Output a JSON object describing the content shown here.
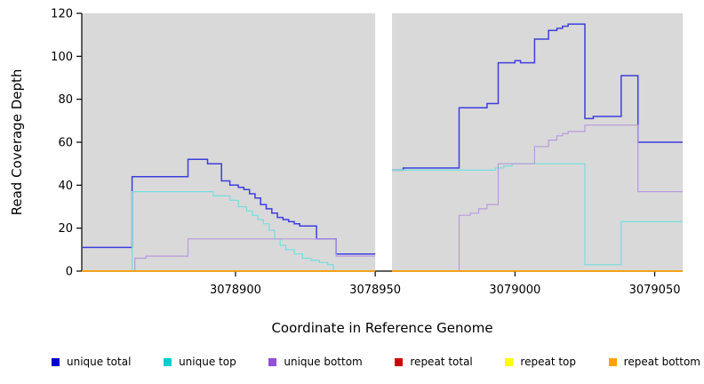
{
  "chart_data": {
    "type": "line",
    "step": true,
    "title": "",
    "xlabel": "Coordinate in Reference Genome",
    "ylabel": "Read Coverage Depth",
    "xlim": [
      3078845,
      3079060
    ],
    "ylim": [
      0,
      120
    ],
    "xticks": [
      3078900,
      3078950,
      3079000,
      3079050
    ],
    "yticks": [
      0,
      20,
      40,
      60,
      80,
      100,
      120
    ],
    "gap": [
      3078950,
      3078956
    ],
    "plot_bg": "#d9d9d9",
    "gap_color": "#ffffff",
    "axis_color": "#000000",
    "legend_position": "bottom",
    "grid": false,
    "series": [
      {
        "name": "unique total",
        "legend_color": "#0000cd",
        "line_color": "#3e3ede",
        "width": 1.5,
        "segments": [
          [
            [
              3078845,
              11
            ],
            [
              3078863,
              44
            ],
            [
              3078883,
              52
            ],
            [
              3078890,
              50
            ],
            [
              3078895,
              42
            ],
            [
              3078898,
              40
            ],
            [
              3078901,
              39
            ],
            [
              3078903,
              38
            ],
            [
              3078905,
              36
            ],
            [
              3078907,
              34
            ],
            [
              3078909,
              31
            ],
            [
              3078911,
              29
            ],
            [
              3078913,
              27
            ],
            [
              3078915,
              25
            ],
            [
              3078917,
              24
            ],
            [
              3078919,
              23
            ],
            [
              3078921,
              22
            ],
            [
              3078923,
              21
            ],
            [
              3078929,
              15
            ],
            [
              3078936,
              8
            ],
            [
              3078950,
              8
            ]
          ],
          [
            [
              3078956,
              47
            ],
            [
              3078960,
              48
            ],
            [
              3078980,
              76
            ],
            [
              3078990,
              78
            ],
            [
              3078994,
              97
            ],
            [
              3079000,
              98
            ],
            [
              3079002,
              97
            ],
            [
              3079007,
              108
            ],
            [
              3079012,
              112
            ],
            [
              3079015,
              113
            ],
            [
              3079017,
              114
            ],
            [
              3079019,
              115
            ],
            [
              3079025,
              71
            ],
            [
              3079028,
              72
            ],
            [
              3079038,
              91
            ],
            [
              3079044,
              60
            ],
            [
              3079060,
              60
            ]
          ]
        ]
      },
      {
        "name": "unique top",
        "legend_color": "#00cdcd",
        "line_color": "#74dede",
        "width": 1.2,
        "segments": [
          [
            [
              3078845,
              0
            ],
            [
              3078863,
              37
            ],
            [
              3078892,
              35
            ],
            [
              3078898,
              33
            ],
            [
              3078901,
              30
            ],
            [
              3078904,
              28
            ],
            [
              3078906,
              26
            ],
            [
              3078908,
              24
            ],
            [
              3078910,
              22
            ],
            [
              3078912,
              19
            ],
            [
              3078914,
              15
            ],
            [
              3078916,
              12
            ],
            [
              3078918,
              10
            ],
            [
              3078921,
              8
            ],
            [
              3078924,
              6
            ],
            [
              3078927,
              5
            ],
            [
              3078930,
              4
            ],
            [
              3078933,
              3
            ],
            [
              3078935,
              0
            ],
            [
              3078950,
              0
            ]
          ],
          [
            [
              3078956,
              47
            ],
            [
              3078993,
              48
            ],
            [
              3078996,
              49
            ],
            [
              3078999,
              50
            ],
            [
              3079025,
              3
            ],
            [
              3079038,
              23
            ],
            [
              3079060,
              23
            ]
          ]
        ]
      },
      {
        "name": "unique bottom",
        "legend_color": "#9350d2",
        "line_color": "#b79add",
        "width": 1.2,
        "segments": [
          [
            [
              3078845,
              0
            ],
            [
              3078864,
              6
            ],
            [
              3078868,
              7
            ],
            [
              3078883,
              15
            ],
            [
              3078929,
              15
            ],
            [
              3078936,
              7
            ],
            [
              3078950,
              7
            ]
          ],
          [
            [
              3078956,
              0
            ],
            [
              3078980,
              26
            ],
            [
              3078984,
              27
            ],
            [
              3078987,
              29
            ],
            [
              3078990,
              31
            ],
            [
              3078994,
              50
            ],
            [
              3079007,
              58
            ],
            [
              3079012,
              61
            ],
            [
              3079015,
              63
            ],
            [
              3079017,
              64
            ],
            [
              3079019,
              65
            ],
            [
              3079025,
              68
            ],
            [
              3079044,
              37
            ],
            [
              3079060,
              37
            ]
          ]
        ]
      },
      {
        "name": "repeat total",
        "legend_color": "#cd0000",
        "line_color": "#cd0000",
        "width": 1.2,
        "segments": [
          [
            [
              3078845,
              0
            ],
            [
              3078950,
              0
            ]
          ],
          [
            [
              3078956,
              0
            ],
            [
              3079060,
              0
            ]
          ]
        ]
      },
      {
        "name": "repeat top",
        "legend_color": "#ffff00",
        "line_color": "#ffff00",
        "width": 1.2,
        "segments": [
          [
            [
              3078845,
              0
            ],
            [
              3078950,
              0
            ]
          ],
          [
            [
              3078956,
              0
            ],
            [
              3079060,
              0
            ]
          ]
        ]
      },
      {
        "name": "repeat bottom",
        "legend_color": "#ffa200",
        "line_color": "#ffa200",
        "width": 1.5,
        "segments": [
          [
            [
              3078845,
              0
            ],
            [
              3078950,
              0
            ]
          ],
          [
            [
              3078956,
              0
            ],
            [
              3079060,
              0
            ]
          ]
        ]
      }
    ]
  }
}
